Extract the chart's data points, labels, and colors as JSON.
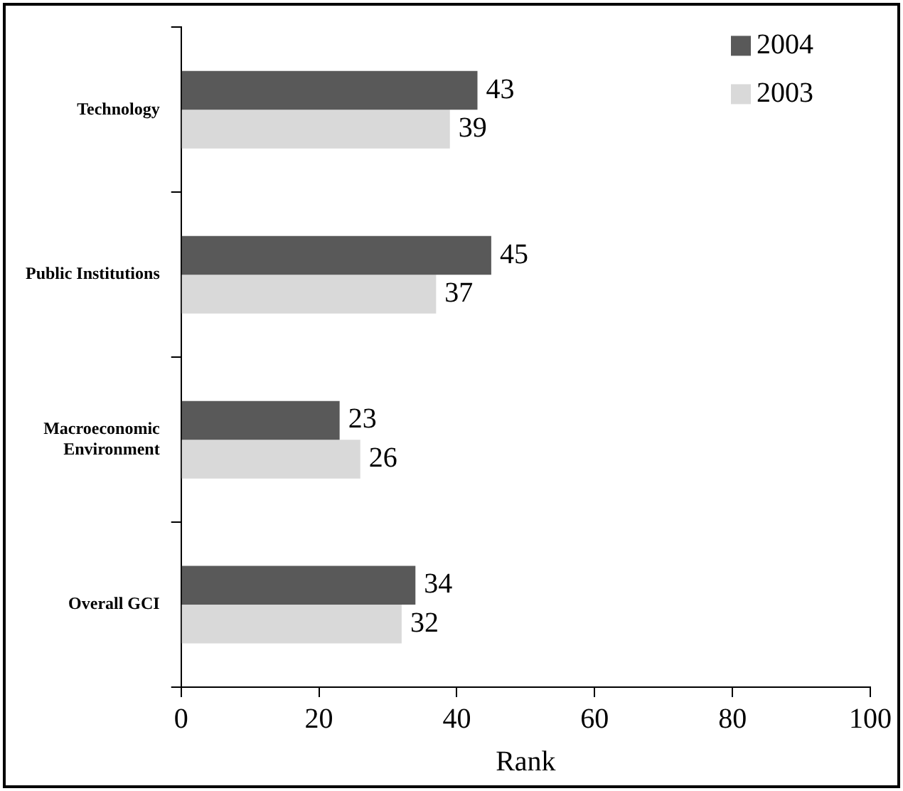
{
  "chart_data": {
    "type": "bar",
    "orientation": "horizontal",
    "categories": [
      "Technology",
      "Public Institutions",
      "Macroeconomic Environment",
      "Overall GCI"
    ],
    "series": [
      {
        "name": "2004",
        "color": "#595959",
        "values": [
          43,
          45,
          23,
          34
        ]
      },
      {
        "name": "2003",
        "color": "#d9d9d9",
        "values": [
          39,
          37,
          26,
          32
        ]
      }
    ],
    "xlabel": "Rank",
    "xlim": [
      0,
      100
    ],
    "xticks": [
      0,
      20,
      40,
      60,
      80,
      100
    ],
    "grid": false,
    "legend": "top right",
    "data_labels": true
  }
}
